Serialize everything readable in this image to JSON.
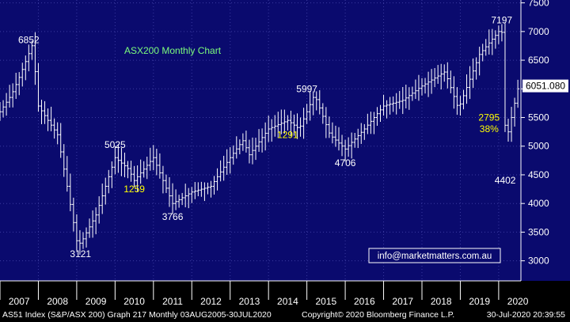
{
  "chart_data": {
    "type": "ohlc",
    "title": "ASX200 Monthly Chart",
    "xlabel": "",
    "ylabel": "",
    "x_range": [
      2007.0,
      2020.58
    ],
    "ylim": [
      2650,
      7550
    ],
    "y_ticks": [
      3000,
      3500,
      4000,
      4500,
      5000,
      5500,
      6000,
      6500,
      7000,
      7500
    ],
    "x_tick_labels": [
      "2007",
      "2008",
      "2009",
      "2010",
      "2011",
      "2012",
      "2013",
      "2014",
      "2015",
      "2016",
      "2017",
      "2018",
      "2019",
      "2020"
    ],
    "grid": true,
    "last_price": "6051.080",
    "annotations": [
      {
        "text": "6852",
        "x": 2007.75,
        "y": 6852,
        "color": "#ffffff"
      },
      {
        "text": "3121",
        "x": 2009.1,
        "y": 3121,
        "color": "#ffffff"
      },
      {
        "text": "5025",
        "x": 2010.0,
        "y": 5025,
        "color": "#ffffff"
      },
      {
        "text": "1259",
        "x": 2010.5,
        "y": 4250,
        "color": "#ffff00"
      },
      {
        "text": "3766",
        "x": 2011.5,
        "y": 3766,
        "color": "#ffffff"
      },
      {
        "text": "5997",
        "x": 2015.0,
        "y": 5997,
        "color": "#ffffff"
      },
      {
        "text": "1291",
        "x": 2014.5,
        "y": 5200,
        "color": "#ffff00"
      },
      {
        "text": "4706",
        "x": 2016.0,
        "y": 4706,
        "color": "#ffffff"
      },
      {
        "text": "7197",
        "x": 2020.08,
        "y": 7197,
        "color": "#ffffff"
      },
      {
        "text": "2795",
        "x": 2019.75,
        "y": 5500,
        "color": "#ffff00"
      },
      {
        "text": "38%",
        "x": 2019.75,
        "y": 5300,
        "color": "#ffff00"
      },
      {
        "text": "4402",
        "x": 2020.17,
        "y": 4402,
        "color": "#ffffff"
      }
    ],
    "anchor_points": [
      {
        "x": 2007.0,
        "y": 5600
      },
      {
        "x": 2007.3,
        "y": 5900
      },
      {
        "x": 2007.5,
        "y": 6200
      },
      {
        "x": 2007.85,
        "y": 6780
      },
      {
        "x": 2008.0,
        "y": 5700
      },
      {
        "x": 2008.5,
        "y": 5200
      },
      {
        "x": 2008.75,
        "y": 4300
      },
      {
        "x": 2009.0,
        "y": 3350
      },
      {
        "x": 2009.1,
        "y": 3300
      },
      {
        "x": 2009.5,
        "y": 3800
      },
      {
        "x": 2010.0,
        "y": 4800
      },
      {
        "x": 2010.35,
        "y": 4600
      },
      {
        "x": 2010.5,
        "y": 4400
      },
      {
        "x": 2011.0,
        "y": 4800
      },
      {
        "x": 2011.5,
        "y": 4000
      },
      {
        "x": 2012.0,
        "y": 4200
      },
      {
        "x": 2012.5,
        "y": 4300
      },
      {
        "x": 2013.0,
        "y": 4800
      },
      {
        "x": 2013.33,
        "y": 5100
      },
      {
        "x": 2013.5,
        "y": 4850
      },
      {
        "x": 2014.0,
        "y": 5300
      },
      {
        "x": 2014.5,
        "y": 5450
      },
      {
        "x": 2014.8,
        "y": 5300
      },
      {
        "x": 2015.2,
        "y": 5900
      },
      {
        "x": 2015.6,
        "y": 5200
      },
      {
        "x": 2016.0,
        "y": 4950
      },
      {
        "x": 2016.5,
        "y": 5300
      },
      {
        "x": 2017.0,
        "y": 5700
      },
      {
        "x": 2017.5,
        "y": 5800
      },
      {
        "x": 2018.0,
        "y": 6050
      },
      {
        "x": 2018.6,
        "y": 6300
      },
      {
        "x": 2018.95,
        "y": 5650
      },
      {
        "x": 2019.5,
        "y": 6600
      },
      {
        "x": 2020.0,
        "y": 7000
      },
      {
        "x": 2020.08,
        "y": 7050
      },
      {
        "x": 2020.17,
        "y": 5300
      },
      {
        "x": 2020.25,
        "y": 5250
      },
      {
        "x": 2020.5,
        "y": 6000
      },
      {
        "x": 2020.58,
        "y": 6051
      }
    ]
  },
  "colors": {
    "background": "#0a0a6e",
    "bars": "#ffffff",
    "highlight": "#ffff00",
    "title": "#7cfc7c",
    "grid": "#3a3aa0"
  },
  "watermark": "info@marketmatters.com.au",
  "footer": {
    "left": "AS51 Index (S&P/ASX 200) Graph 217  Monthly 03AUG2005-30JUL2020",
    "middle": "Copyright© 2020 Bloomberg Finance L.P.",
    "right": "30-Jul-2020 20:39:55"
  }
}
